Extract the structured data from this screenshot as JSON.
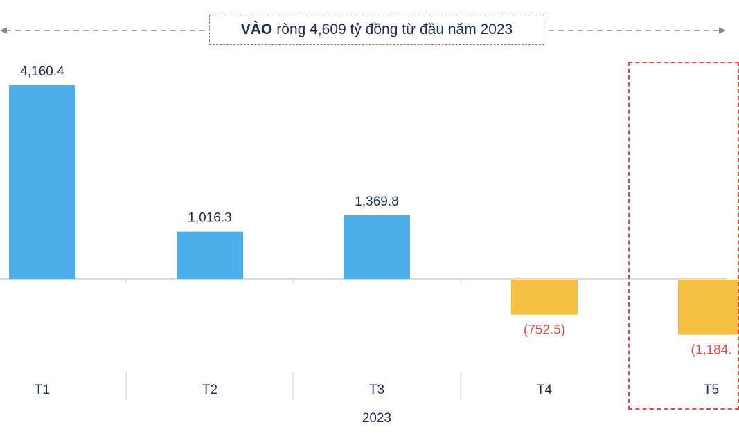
{
  "banner": {
    "bold_text": "VÀO",
    "text": "ròng 4,609 tỷ đồng từ đầu năm 2023"
  },
  "chart_data": {
    "type": "bar",
    "categories": [
      "T1",
      "T2",
      "T3",
      "T4",
      "T5"
    ],
    "values": [
      4160.4,
      1016.3,
      1369.8,
      -752.5,
      -1184.0
    ],
    "data_labels": [
      "4,160.4",
      "1,016.3",
      "1,369.8",
      "(752.5)",
      "(1,184."
    ],
    "group_label": "2023",
    "title": "",
    "xlabel": "",
    "ylabel": "",
    "ylim": [
      -2950,
      5850
    ],
    "grid": false,
    "legend": "none",
    "colors": {
      "positive": "#4daee8",
      "negative": "#f4c143",
      "positive_label": "#1c2c56",
      "negative_label": "#e8453c",
      "axis": "#d0d0d0"
    },
    "highlighted_category": "T5"
  }
}
